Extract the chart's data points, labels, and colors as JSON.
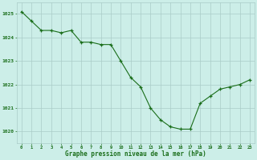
{
  "x": [
    0,
    1,
    2,
    3,
    4,
    5,
    6,
    7,
    8,
    9,
    10,
    11,
    12,
    13,
    14,
    15,
    16,
    17,
    18,
    19,
    20,
    21,
    22,
    23
  ],
  "y": [
    1025.1,
    1024.7,
    1024.3,
    1024.3,
    1024.2,
    1024.3,
    1023.8,
    1023.8,
    1023.7,
    1023.7,
    1023.0,
    1022.3,
    1021.9,
    1021.0,
    1020.5,
    1020.2,
    1020.1,
    1020.1,
    1021.2,
    1021.5,
    1021.8,
    1021.9,
    1022.0,
    1022.2
  ],
  "line_color": "#1a6e1a",
  "marker_color": "#1a6e1a",
  "bg_color": "#cceee8",
  "grid_color": "#aaccc8",
  "xlabel": "Graphe pression niveau de la mer (hPa)",
  "xlabel_color": "#1a6e1a",
  "tick_color": "#1a6e1a",
  "ylim": [
    1019.5,
    1025.5
  ],
  "yticks": [
    1020,
    1021,
    1022,
    1023,
    1024,
    1025
  ],
  "xticks": [
    0,
    1,
    2,
    3,
    4,
    5,
    6,
    7,
    8,
    9,
    10,
    11,
    12,
    13,
    14,
    15,
    16,
    17,
    18,
    19,
    20,
    21,
    22,
    23
  ]
}
